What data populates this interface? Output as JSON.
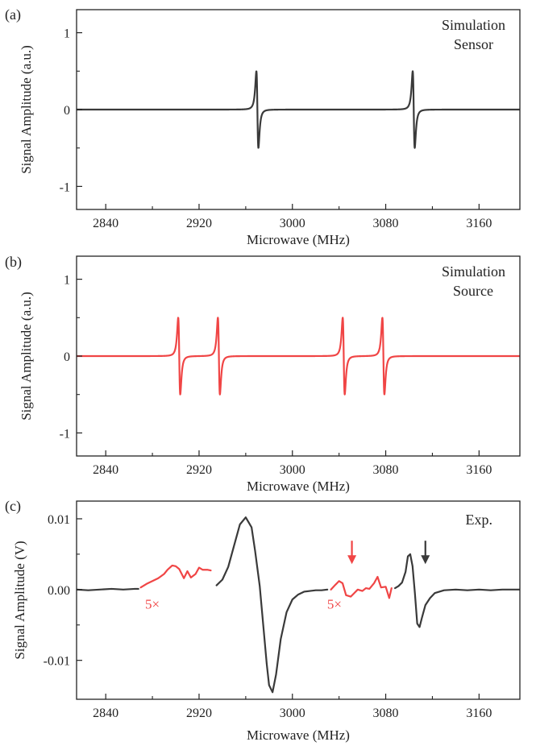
{
  "colors": {
    "sensor": "#3a3a3a",
    "source": "#f04545",
    "axis": "#222222",
    "arrow_red": "#f04545",
    "arrow_dark": "#3a3a3a"
  },
  "chart_data": [
    {
      "type": "line",
      "panel_label": "(a)",
      "legend": [
        "Simulation",
        "Sensor"
      ],
      "legend_color": "sensor",
      "xlabel": "Microwave (MHz)",
      "ylabel": "Signal Amplitude (a.u.)",
      "xlim": [
        2815,
        3195
      ],
      "ylim": [
        -1.3,
        1.3
      ],
      "xticks": [
        2840,
        2920,
        3000,
        3080,
        3160
      ],
      "xtick_labels": [
        "2840",
        "2920",
        "3000",
        "3080",
        "3160"
      ],
      "xminor": [
        2880,
        2960,
        3040,
        3120
      ],
      "yticks": [
        1,
        0,
        -1
      ],
      "ytick_labels": [
        "1",
        "0",
        "-1"
      ],
      "series": [
        {
          "name": "Sensor",
          "color": "sensor",
          "kind": "derivative_lorentzian",
          "x_range": [
            2815,
            3195
          ],
          "peaks": [
            {
              "center": 2970,
              "hwhm": 1.5,
              "amplitude": 1
            },
            {
              "center": 3104,
              "hwhm": 1.5,
              "amplitude": 1
            }
          ]
        }
      ]
    },
    {
      "type": "line",
      "panel_label": "(b)",
      "legend": [
        "Simulation",
        "Source"
      ],
      "legend_color": "sensor",
      "xlabel": "Microwave (MHz)",
      "ylabel": "Signal Amplitude (a.u.)",
      "xlim": [
        2815,
        3195
      ],
      "ylim": [
        -1.3,
        1.3
      ],
      "xticks": [
        2840,
        2920,
        3000,
        3080,
        3160
      ],
      "xtick_labels": [
        "2840",
        "2920",
        "3000",
        "3080",
        "3160"
      ],
      "xminor": [
        2880,
        2960,
        3040,
        3120
      ],
      "yticks": [
        1,
        0,
        -1
      ],
      "ytick_labels": [
        "1",
        "0",
        "-1"
      ],
      "series": [
        {
          "name": "Source",
          "color": "source",
          "kind": "derivative_lorentzian",
          "x_range": [
            2815,
            3195
          ],
          "peaks": [
            {
              "center": 2903,
              "hwhm": 1.5,
              "amplitude": 1
            },
            {
              "center": 2937,
              "hwhm": 1.5,
              "amplitude": 1
            },
            {
              "center": 3044,
              "hwhm": 1.5,
              "amplitude": 1
            },
            {
              "center": 3078,
              "hwhm": 1.5,
              "amplitude": 1
            }
          ]
        }
      ]
    },
    {
      "type": "line",
      "panel_label": "(c)",
      "legend": [
        "Exp."
      ],
      "legend_color": "sensor",
      "xlabel": "Microwave (MHz)",
      "ylabel": "Signal Amplitude (V)",
      "xlim": [
        2815,
        3195
      ],
      "ylim": [
        -0.0155,
        0.0125
      ],
      "xticks": [
        2840,
        2920,
        3000,
        3080,
        3160
      ],
      "xtick_labels": [
        "2840",
        "2920",
        "3000",
        "3080",
        "3160"
      ],
      "xminor": [
        2880,
        2960,
        3040,
        3120
      ],
      "yticks": [
        0.01,
        0.0,
        -0.01
      ],
      "ytick_labels": [
        "0.01",
        "0.00",
        "-0.01"
      ],
      "series": [
        {
          "name": "Exp. segment 1",
          "color": "sensor",
          "x": [
            2815,
            2825,
            2835,
            2845,
            2855,
            2865,
            2868
          ],
          "y": [
            0.0,
            -0.0001,
            0.0,
            0.0001,
            0.0,
            0.0001,
            0.0001
          ]
        },
        {
          "name": "Exp. 5x segment 1",
          "color": "source",
          "x": [
            2870,
            2875,
            2880,
            2885,
            2890,
            2893,
            2897,
            2900,
            2903,
            2907,
            2910,
            2913,
            2917,
            2920,
            2923,
            2927,
            2930
          ],
          "y": [
            0.0003,
            0.0008,
            0.0012,
            0.0016,
            0.0022,
            0.0028,
            0.0034,
            0.0033,
            0.0029,
            0.0016,
            0.0026,
            0.0017,
            0.0022,
            0.0031,
            0.0028,
            0.0028,
            0.0027
          ]
        },
        {
          "name": "Exp. main peak",
          "color": "sensor",
          "x": [
            2935,
            2940,
            2945,
            2950,
            2955,
            2960,
            2965,
            2968,
            2972,
            2975,
            2978,
            2980,
            2983,
            2986,
            2990,
            2995,
            3000,
            3005,
            3010,
            3015,
            3020,
            3025,
            3030
          ],
          "y": [
            0.0006,
            0.0014,
            0.0032,
            0.0062,
            0.0092,
            0.0102,
            0.0088,
            0.0055,
            0.0005,
            -0.005,
            -0.0105,
            -0.0135,
            -0.0145,
            -0.012,
            -0.007,
            -0.0032,
            -0.0014,
            -0.0007,
            -0.0003,
            -0.0002,
            -0.0001,
            -0.0001,
            0.0
          ]
        },
        {
          "name": "Exp. 5x segment 2",
          "color": "source",
          "x": [
            3033,
            3037,
            3040,
            3043,
            3046,
            3050,
            3053,
            3056,
            3060,
            3063,
            3066,
            3070,
            3073,
            3076,
            3080,
            3083,
            3085
          ],
          "y": [
            0.0,
            0.0007,
            0.0012,
            0.0009,
            -0.0008,
            -0.001,
            -0.0005,
            0.0,
            -0.0002,
            0.0002,
            0.0001,
            0.0009,
            0.0018,
            0.0003,
            0.0004,
            -0.0012,
            0.0002
          ]
        },
        {
          "name": "Exp. sensor peak",
          "color": "sensor",
          "x": [
            3088,
            3091,
            3094,
            3097,
            3099,
            3101,
            3103,
            3105,
            3107,
            3109,
            3111,
            3114,
            3118,
            3122,
            3130,
            3140,
            3150,
            3160,
            3170,
            3180,
            3195
          ],
          "y": [
            0.0002,
            0.0005,
            0.001,
            0.0025,
            0.0047,
            0.005,
            0.0033,
            -0.0005,
            -0.0048,
            -0.0053,
            -0.004,
            -0.0022,
            -0.0012,
            -0.0005,
            -0.0001,
            0.0,
            -0.0001,
            0.0,
            -0.0001,
            0.0,
            0.0
          ]
        }
      ],
      "annotations": [
        {
          "text": "5×",
          "x": 2880,
          "y": -0.0027,
          "color": "source"
        },
        {
          "text": "5×",
          "x": 3036,
          "y": -0.0027,
          "color": "source"
        }
      ],
      "arrows": [
        {
          "x": 3051,
          "y_top": 0.0069,
          "y_tip": 0.0036,
          "color": "arrow_red"
        },
        {
          "x": 3114,
          "y_top": 0.0069,
          "y_tip": 0.0036,
          "color": "arrow_dark"
        }
      ]
    }
  ]
}
